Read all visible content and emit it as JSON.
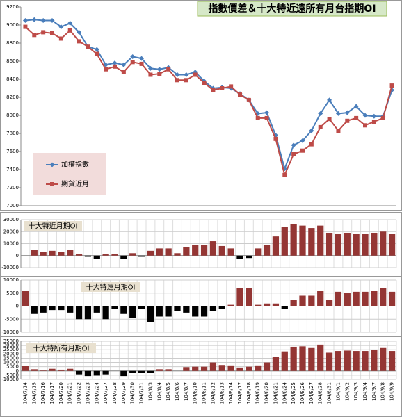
{
  "chart_data": [
    {
      "type": "line",
      "title": "指數價差＆十大特近遠所有月台指期OI",
      "ylim": [
        7000,
        9200
      ],
      "yticks": [
        7000,
        7200,
        7400,
        7600,
        7800,
        8000,
        8200,
        8400,
        8600,
        8800,
        9000,
        9200
      ],
      "series": [
        {
          "name": "加權指數",
          "color": "#4a7ebb",
          "marker": "diamond",
          "values": [
            9050,
            9060,
            9050,
            9050,
            8980,
            9020,
            8920,
            8760,
            8730,
            8560,
            8580,
            8560,
            8650,
            8630,
            8520,
            8510,
            8530,
            8450,
            8450,
            8480,
            8380,
            8300,
            8310,
            8300,
            8240,
            8170,
            8020,
            8030,
            7780,
            7410,
            7670,
            7720,
            7830,
            8020,
            8170,
            8020,
            8030,
            8100,
            8000,
            7990,
            7990,
            8280
          ]
        },
        {
          "name": "期貨近月",
          "color": "#be4b48",
          "marker": "square",
          "values": [
            8980,
            8890,
            8920,
            8910,
            8850,
            8940,
            8820,
            8760,
            8680,
            8510,
            8540,
            8480,
            8590,
            8570,
            8450,
            8460,
            8510,
            8390,
            8390,
            8450,
            8360,
            8280,
            8300,
            8320,
            8230,
            8170,
            7970,
            7970,
            7740,
            7340,
            7570,
            7610,
            7680,
            7870,
            7960,
            7830,
            7940,
            7970,
            7890,
            7930,
            7970,
            8330
          ]
        }
      ],
      "legend": "left",
      "grid": false
    },
    {
      "type": "bar",
      "title": "十大特近月期OI",
      "color": "#943634",
      "negative_color": "#000000",
      "ylim": [
        -10000,
        30000
      ],
      "yticks": [
        -10000,
        0,
        10000,
        20000,
        30000
      ],
      "grid": true,
      "values": [
        0,
        5000,
        3000,
        4000,
        3000,
        5000,
        1000,
        -1000,
        -3000,
        1000,
        1000,
        -3000,
        2000,
        -1000,
        4000,
        6000,
        6000,
        2000,
        7000,
        9000,
        9000,
        12000,
        8000,
        6000,
        -3000,
        -2000,
        6000,
        9000,
        16000,
        24000,
        26000,
        25000,
        23000,
        25000,
        19000,
        18000,
        19000,
        18000,
        18000,
        19000,
        20000,
        18000
      ]
    },
    {
      "type": "bar",
      "title": "十大特遠月期OI",
      "color": "#943634",
      "negative_color": "#000000",
      "ylim": [
        -10000,
        10000
      ],
      "yticks": [
        -10000,
        -5000,
        0,
        5000,
        10000
      ],
      "grid": true,
      "values": [
        6000,
        -3000,
        -2500,
        -1500,
        -1500,
        -2500,
        -5000,
        -5000,
        -2500,
        -5000,
        -1000,
        -3000,
        -4500,
        -1000,
        -6000,
        -4000,
        -4000,
        -2000,
        -2500,
        -4000,
        -4000,
        -2000,
        -1000,
        500,
        7000,
        7000,
        500,
        1000,
        1000,
        -1000,
        2500,
        4000,
        4000,
        6000,
        2500,
        5500,
        5000,
        5500,
        5500,
        6000,
        7000,
        5500
      ]
    },
    {
      "type": "bar",
      "title": "十大特所有月期OI",
      "color": "#943634",
      "negative_color": "#000000",
      "ylim": [
        -10000,
        35000
      ],
      "yticks": [
        -10000,
        -5000,
        0,
        5000,
        10000,
        15000,
        20000,
        25000,
        30000,
        35000
      ],
      "grid": true,
      "categories": [
        "104/7/14",
        "104/7/15",
        "104/7/16",
        "104/7/17",
        "104/7/20",
        "104/7/21",
        "104/7/22",
        "104/7/23",
        "104/7/24",
        "104/7/27",
        "104/7/28",
        "104/7/29",
        "104/7/30",
        "104/7/31",
        "104/8/3",
        "104/8/4",
        "104/8/5",
        "104/8/6",
        "104/8/7",
        "104/8/10",
        "104/8/11",
        "104/8/12",
        "104/8/13",
        "104/8/14",
        "104/8/17",
        "104/8/18",
        "104/8/19",
        "104/8/20",
        "104/8/21",
        "104/8/24",
        "104/8/25",
        "104/8/26",
        "104/8/27",
        "104/8/28",
        "104/8/31",
        "104/9/1",
        "104/9/2",
        "104/9/3",
        "104/9/4",
        "104/9/7",
        "104/9/8",
        "104/9/9"
      ],
      "values": [
        6000,
        2000,
        500,
        2500,
        1500,
        2500,
        -4000,
        -6000,
        -5500,
        -4000,
        0,
        -6000,
        -2500,
        -2000,
        -2000,
        2000,
        2000,
        0,
        4500,
        5000,
        5000,
        10000,
        7000,
        6500,
        4000,
        5000,
        6500,
        10000,
        17000,
        23000,
        28500,
        29000,
        27000,
        31000,
        21500,
        23500,
        24000,
        23500,
        23500,
        25000,
        27000,
        23500
      ]
    }
  ]
}
